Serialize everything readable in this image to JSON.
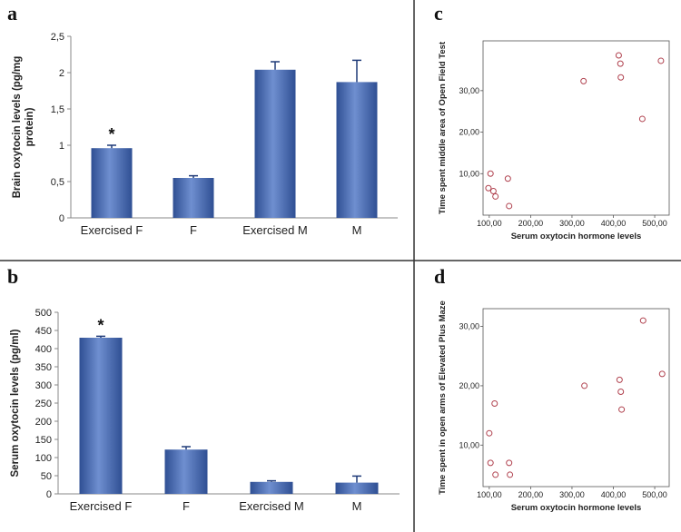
{
  "panel_labels": {
    "a": "a",
    "b": "b",
    "c": "c",
    "d": "d"
  },
  "colors": {
    "bar": "#4a6db5",
    "bar_light": "#8aa5d8",
    "bar_dark": "#2f4f93",
    "marker": "#b0414e",
    "axis": "#888888",
    "divider": "#333333"
  },
  "chart_data": [
    {
      "panel": "a",
      "type": "bar",
      "categories": [
        "Exercised F",
        "F",
        "Exercised M",
        "M"
      ],
      "values": [
        0.96,
        0.55,
        2.04,
        1.87
      ],
      "errors": [
        0.04,
        0.03,
        0.11,
        0.3
      ],
      "significance": [
        "*",
        "",
        "",
        ""
      ],
      "ylabel_lines": [
        "Brain oxytocin levels (pg/mg",
        "protein)"
      ],
      "ylim": [
        0,
        2.5
      ],
      "yticks": [
        0,
        0.5,
        1,
        1.5,
        2,
        2.5
      ],
      "ytick_labels": [
        "0",
        "0,5",
        "1",
        "1,5",
        "2",
        "2,5"
      ],
      "grid": false
    },
    {
      "panel": "b",
      "type": "bar",
      "categories": [
        "Exercised F",
        "F",
        "Exercised M",
        "M"
      ],
      "values": [
        430,
        122,
        33,
        31
      ],
      "errors": [
        4,
        8,
        3,
        18
      ],
      "significance": [
        "*",
        "",
        "",
        ""
      ],
      "ylabel_lines": [
        "Serum oxytocin levels (pg/ml)"
      ],
      "ylim": [
        0,
        500
      ],
      "yticks": [
        0,
        50,
        100,
        150,
        200,
        250,
        300,
        350,
        400,
        450,
        500
      ],
      "ytick_labels": [
        "0",
        "50",
        "100",
        "150",
        "200",
        "250",
        "300",
        "350",
        "400",
        "450",
        "500"
      ],
      "grid": false
    },
    {
      "panel": "c",
      "type": "scatter",
      "x": [
        98,
        103,
        110,
        115,
        145,
        148,
        328,
        413,
        417,
        418,
        470,
        515
      ],
      "y": [
        6.5,
        10.0,
        5.8,
        4.5,
        8.8,
        2.2,
        32.3,
        38.5,
        36.5,
        33.2,
        23.2,
        37.2
      ],
      "xlabel": "Serum oxytocin hormone levels",
      "ylabel": "Time spent middle area of Open Field Test",
      "xlim": [
        85,
        535
      ],
      "ylim": [
        0,
        42
      ],
      "xticks": [
        100,
        200,
        300,
        400,
        500
      ],
      "xtick_labels": [
        "100,00",
        "200,00",
        "300,00",
        "400,00",
        "500,00"
      ],
      "yticks": [
        10,
        20,
        30
      ],
      "ytick_labels": [
        "10,00",
        "20,00",
        "30,00"
      ]
    },
    {
      "panel": "d",
      "type": "scatter",
      "x": [
        100,
        103,
        113,
        115,
        148,
        150,
        330,
        415,
        418,
        420,
        472,
        518
      ],
      "y": [
        12,
        7,
        17,
        5,
        7,
        5,
        20,
        21,
        19,
        16,
        31,
        22
      ],
      "xlabel": "Serum oxytocin hormone levels",
      "ylabel": "Time spent in open arms of Elevated Plus Maze",
      "xlim": [
        85,
        535
      ],
      "ylim": [
        3,
        33
      ],
      "xticks": [
        100,
        200,
        300,
        400,
        500
      ],
      "xtick_labels": [
        "100,00",
        "200,00",
        "300,00",
        "400,00",
        "500,00"
      ],
      "yticks": [
        10,
        20,
        30
      ],
      "ytick_labels": [
        "10,00",
        "20,00",
        "30,00"
      ]
    }
  ]
}
